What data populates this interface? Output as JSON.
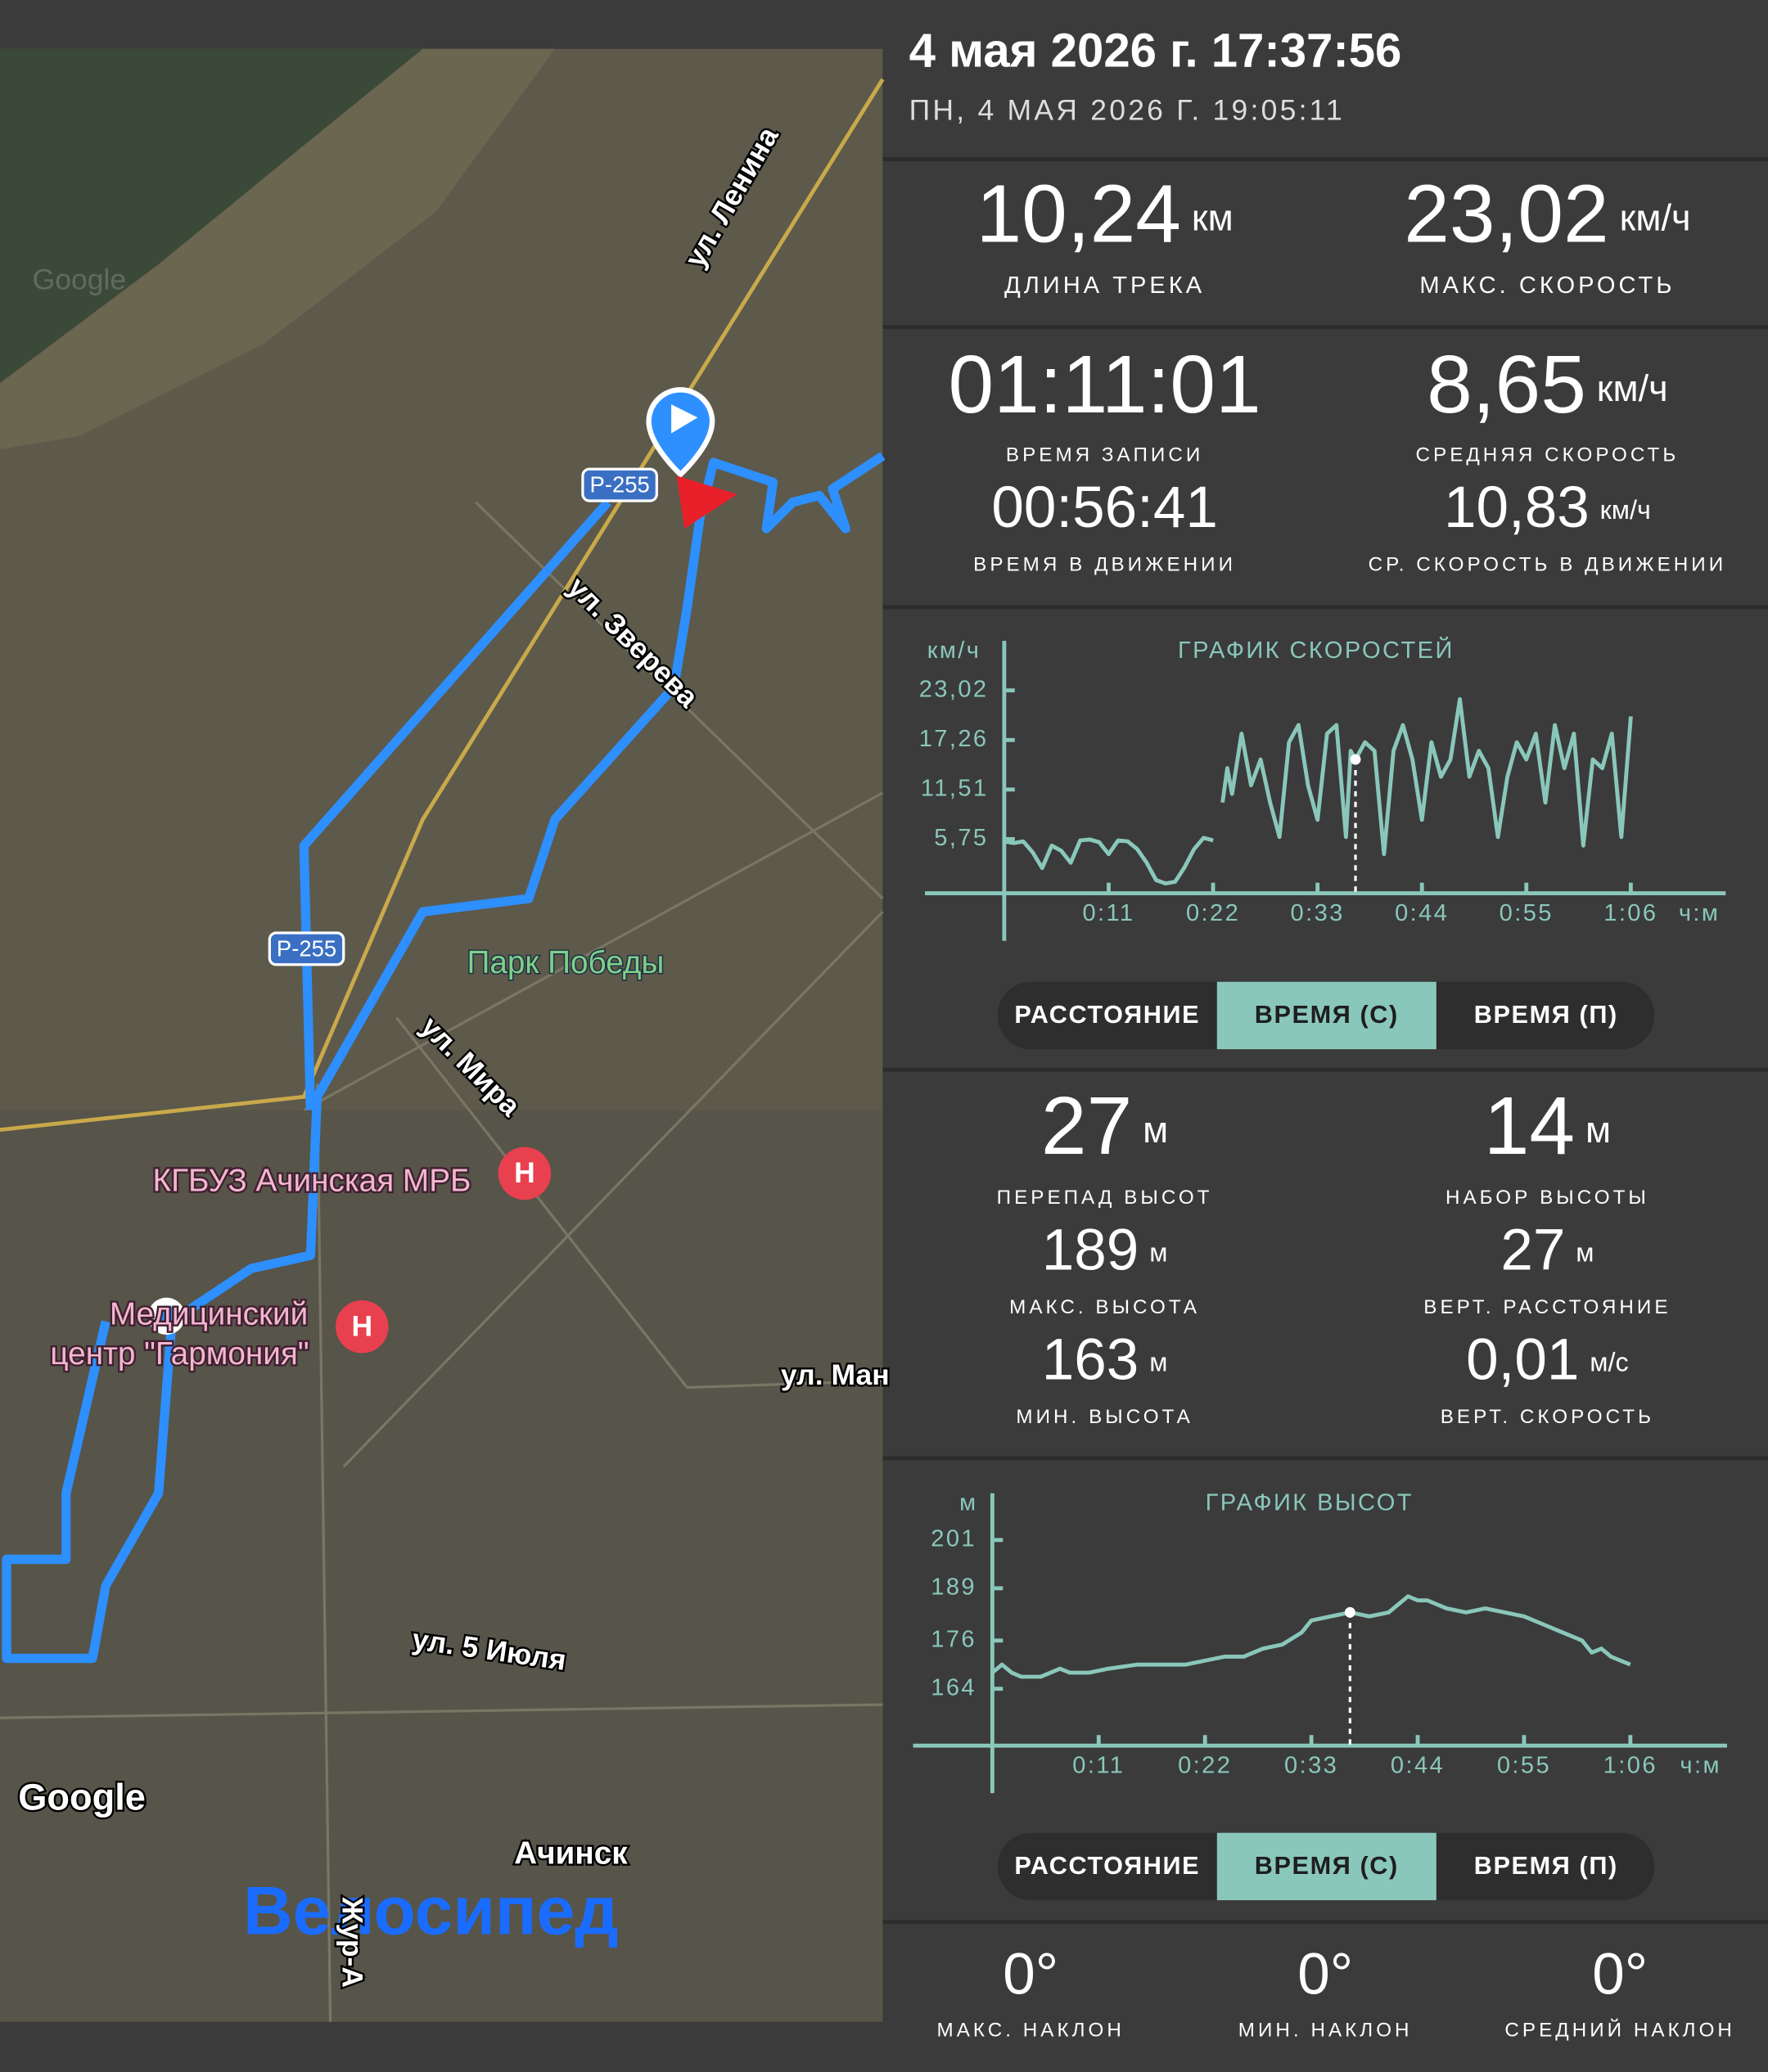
{
  "header": {
    "title": "4 мая 2026 г. 17:37:56",
    "subtitle": "ПН, 4 МАЯ 2026 Г. 19:05:11"
  },
  "map": {
    "labels": [
      "ул. Ленина",
      "Р-255",
      "ул. Зверева",
      "Р-255",
      "Парк Победы",
      "ул. Мира",
      "КГБУЗ Ачинская МРБ",
      "Медицинский",
      "центр \"Гармония\"",
      "ул. Ман",
      "ул. 5 Июля",
      "Google",
      "Google",
      "Ачинск",
      "Велосипед",
      "Жур-А"
    ]
  },
  "track": [
    {
      "value": "10,24",
      "unit": "км",
      "label": "ДЛИНА ТРЕКА"
    },
    {
      "value": "23,02",
      "unit": "км/ч",
      "label": "МАКС. СКОРОСТЬ"
    },
    {
      "value": "01:11:01",
      "label": "ВРЕМЯ ЗАПИСИ"
    },
    {
      "value": "8,65",
      "unit": "км/ч",
      "label": "СРЕДНЯЯ СКОРОСТЬ"
    },
    {
      "value": "00:56:41",
      "label": "ВРЕМЯ В ДВИЖЕНИИ"
    },
    {
      "value": "10,83",
      "unit": "км/ч",
      "label": "СР. СКОРОСТЬ В ДВИЖЕНИИ"
    }
  ],
  "speed_chart": {
    "type": "line",
    "title": "ГРАФИК СКОРОСТЕЙ",
    "y_unit": "км/ч",
    "x_unit": "ч:м",
    "color": "#8ac7bb",
    "cursor": 37,
    "x": [
      0,
      1,
      2,
      3,
      4,
      5,
      6,
      7,
      8,
      9,
      10,
      11,
      12,
      13,
      14,
      15,
      16,
      17,
      18,
      19,
      20,
      21,
      22,
      22.5,
      23,
      23.5,
      24,
      25,
      26,
      27,
      28,
      29,
      30,
      31,
      32,
      33,
      34,
      35,
      36,
      36.5,
      37,
      38,
      39,
      40,
      41,
      42,
      43,
      44,
      45,
      46,
      47,
      48,
      49,
      50,
      51,
      52,
      53,
      54,
      55,
      56,
      57,
      58,
      59,
      60,
      61,
      62,
      63,
      64,
      65,
      66
    ],
    "values": [
      5.5,
      5.3,
      5.5,
      4.2,
      2.4,
      5.0,
      4.4,
      3.0,
      5.6,
      5.7,
      5.4,
      4.0,
      5.6,
      5.5,
      4.6,
      3.0,
      1.0,
      0.6,
      0.8,
      2.5,
      4.6,
      5.9,
      5.6,
      null,
      10,
      14,
      11,
      18,
      12,
      15,
      10,
      6,
      17,
      19,
      12,
      8,
      18,
      19,
      6,
      16,
      15,
      17,
      16,
      4,
      16,
      19,
      15,
      8,
      17,
      13,
      15,
      22,
      13,
      16,
      14,
      6,
      13,
      17,
      15,
      18,
      10,
      19,
      14,
      18,
      5,
      15,
      14,
      18,
      6,
      20
    ],
    "xlim": [
      0,
      76
    ],
    "ylim": [
      0,
      28
    ],
    "xticks": [
      {
        "value": 11,
        "label": "0:11"
      },
      {
        "value": 22,
        "label": "0:22"
      },
      {
        "value": 33,
        "label": "0:33"
      },
      {
        "value": 44,
        "label": "0:44"
      },
      {
        "value": 55,
        "label": "0:55"
      },
      {
        "value": 66,
        "label": "1:06"
      }
    ],
    "yticks": [
      {
        "value": 5.75,
        "label": "5,75"
      },
      {
        "value": 11.51,
        "label": "11,51"
      },
      {
        "value": 17.26,
        "label": "17,26"
      },
      {
        "value": 23.02,
        "label": "23,02"
      }
    ]
  },
  "speed_controls": {
    "options": [
      "РАССТОЯНИЕ",
      "ВРЕМЯ (С)",
      "ВРЕМЯ (П)"
    ],
    "selected": 1
  },
  "elevation": [
    {
      "value": "27",
      "unit": "м",
      "label": "ПЕРЕПАД ВЫСОТ"
    },
    {
      "value": "14",
      "unit": "м",
      "label": "НАБОР ВЫСОТЫ"
    },
    {
      "value": "189",
      "unit": "м",
      "label": "МАКС. ВЫСОТА"
    },
    {
      "value": "27",
      "unit": "м",
      "label": "ВЕРТ. РАССТОЯНИЕ"
    },
    {
      "value": "163",
      "unit": "м",
      "label": "МИН. ВЫСОТА"
    },
    {
      "value": "0,01",
      "unit": "м/с",
      "label": "ВЕРТ. СКОРОСТЬ"
    }
  ],
  "altitude_chart": {
    "type": "line",
    "title": "ГРАФИК ВЫСОТ",
    "y_unit": "м",
    "x_unit": "ч:м",
    "color": "#8ac7bb",
    "cursor": 37,
    "x": [
      0,
      1,
      2,
      3,
      5,
      7,
      8,
      10,
      12,
      15,
      18,
      20,
      22,
      24,
      26,
      28,
      30,
      32,
      33,
      35,
      37,
      39,
      41,
      42,
      43,
      44,
      45,
      47,
      49,
      51,
      53,
      55,
      57,
      59,
      61,
      62,
      63,
      64,
      65,
      66
    ],
    "values": [
      168,
      170,
      168,
      167,
      167,
      169,
      168,
      168,
      169,
      170,
      170,
      170,
      171,
      172,
      172,
      174,
      175,
      178,
      181,
      182,
      183,
      182,
      183,
      185,
      187,
      186,
      186,
      184,
      183,
      184,
      183,
      182,
      180,
      178,
      176,
      173,
      174,
      172,
      171,
      170
    ],
    "xlim": [
      0,
      76
    ],
    "ylim": [
      150,
      211
    ],
    "xticks": [
      {
        "value": 11,
        "label": "0:11"
      },
      {
        "value": 22,
        "label": "0:22"
      },
      {
        "value": 33,
        "label": "0:33"
      },
      {
        "value": 44,
        "label": "0:44"
      },
      {
        "value": 55,
        "label": "0:55"
      },
      {
        "value": 66,
        "label": "1:06"
      }
    ],
    "yticks": [
      164,
      176,
      189,
      201
    ]
  },
  "altitude_controls": {
    "options": [
      "РАССТОЯНИЕ",
      "ВРЕМЯ (С)",
      "ВРЕМЯ (П)"
    ],
    "selected": 1
  },
  "slope": [
    {
      "value": "0°",
      "label": "МАКС. НАКЛОН"
    },
    {
      "value": "0°",
      "label": "МИН. НАКЛОН"
    },
    {
      "value": "0°",
      "label": "СРЕДНИЙ НАКЛОН"
    }
  ]
}
